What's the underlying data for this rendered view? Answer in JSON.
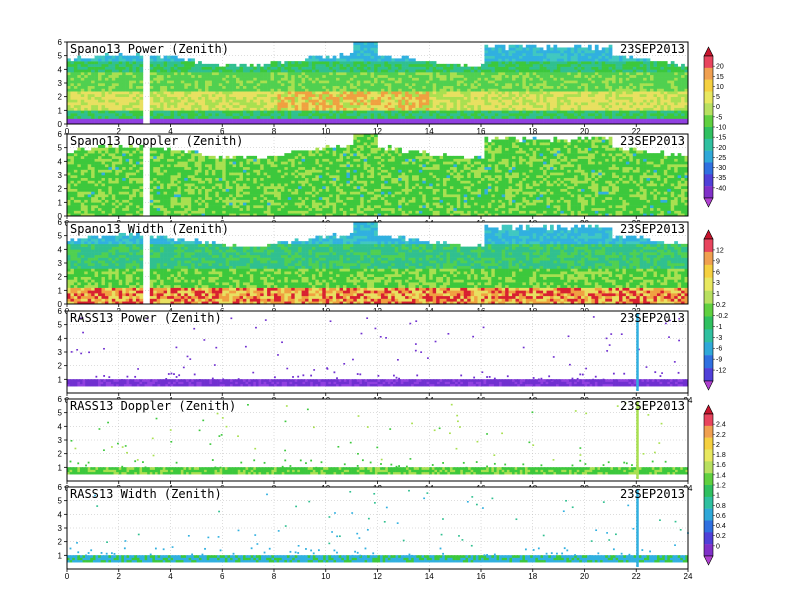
{
  "chart_data": [
    {
      "type": "heatmap",
      "title": "Spano13 Power (Zenith)",
      "date": "23SEP2013",
      "xlim": [
        0,
        24
      ],
      "ylim": [
        0,
        6
      ],
      "x_ticks": [
        "0",
        "2",
        "4",
        "6",
        "8",
        "10",
        "12",
        "14",
        "16",
        "18",
        "20",
        "22"
      ],
      "y_ticks": [
        "0",
        "1",
        "2",
        "3",
        "4",
        "5",
        "6"
      ],
      "grid": true,
      "colorbar": "profiler"
    },
    {
      "type": "heatmap",
      "title": "Spano13 Doppler (Zenith)",
      "date": "23SEP2013",
      "xlim": [
        0,
        24
      ],
      "ylim": [
        0,
        6
      ],
      "x_ticks": [
        "0",
        "2",
        "4",
        "6",
        "8",
        "10",
        "12",
        "14",
        "16",
        "18",
        "20",
        "22"
      ],
      "y_ticks": [
        "0",
        "1",
        "2",
        "3",
        "4",
        "5",
        "6"
      ],
      "grid": true,
      "colorbar": "profiler"
    },
    {
      "type": "heatmap",
      "title": "Spano13 Width (Zenith)",
      "date": "23SEP2013",
      "xlim": [
        0,
        24
      ],
      "ylim": [
        0,
        6
      ],
      "x_ticks": [
        "0",
        "2",
        "4",
        "6",
        "8",
        "10",
        "12",
        "14",
        "16",
        "18",
        "20",
        "22"
      ],
      "y_ticks": [
        "0",
        "1",
        "2",
        "3",
        "4",
        "5",
        "6"
      ],
      "grid": true,
      "colorbar": "width"
    },
    {
      "type": "heatmap",
      "title": "RASS13 Power (Zenith)",
      "date": "23SEP2013",
      "xlim": [
        0,
        24
      ],
      "ylim": [
        0,
        6
      ],
      "x_ticks": [
        "0",
        "2",
        "4",
        "6",
        "8",
        "10",
        "12",
        "14",
        "16",
        "18",
        "20",
        "22",
        "24"
      ],
      "y_ticks": [
        "1",
        "2",
        "3",
        "4",
        "5",
        "6"
      ],
      "grid": true,
      "colorbar": "width"
    },
    {
      "type": "heatmap",
      "title": "RASS13 Doppler (Zenith)",
      "date": "23SEP2013",
      "xlim": [
        0,
        24
      ],
      "ylim": [
        0,
        6
      ],
      "x_ticks": [
        "0",
        "2",
        "4",
        "6",
        "8",
        "10",
        "12",
        "14",
        "16",
        "18",
        "20",
        "22",
        "24"
      ],
      "y_ticks": [
        "1",
        "2",
        "3",
        "4",
        "5",
        "6"
      ],
      "grid": true,
      "colorbar": "rass"
    },
    {
      "type": "heatmap",
      "title": "RASS13 Width (Zenith)",
      "date": "23SEP2013",
      "xlim": [
        0,
        24
      ],
      "ylim": [
        0,
        6
      ],
      "x_ticks": [
        "0",
        "2",
        "4",
        "6",
        "8",
        "10",
        "12",
        "14",
        "16",
        "18",
        "20",
        "22",
        "24"
      ],
      "y_ticks": [
        "1",
        "2",
        "3",
        "4",
        "5",
        "6"
      ],
      "grid": true,
      "colorbar": "rass"
    }
  ],
  "colorbars": {
    "profiler": {
      "labels": [
        "20",
        "15",
        "10",
        "5",
        "0",
        "-5",
        "-10",
        "-15",
        "-20",
        "-25",
        "-30",
        "-35",
        "-40"
      ],
      "colors": [
        "#c8142d",
        "#e8455e",
        "#f0a050",
        "#f5d040",
        "#e8e860",
        "#b8e060",
        "#60d040",
        "#30c060",
        "#30c0a0",
        "#30a8d8",
        "#3070e0",
        "#5040d8",
        "#8030c8",
        "#b040d0"
      ]
    },
    "width": {
      "labels": [
        "12",
        "9",
        "6",
        "3",
        "1",
        "0.2",
        "-0.2",
        "-1",
        "-3",
        "-6",
        "-9",
        "-12"
      ],
      "colors": [
        "#c8142d",
        "#e8455e",
        "#f0a050",
        "#f5d040",
        "#e8e860",
        "#b8e060",
        "#60d040",
        "#30c060",
        "#30c0a0",
        "#30a8d8",
        "#3070e0",
        "#5040d8",
        "#b040d0"
      ]
    },
    "rass": {
      "labels": [
        "2.4",
        "2.2",
        "2",
        "1.8",
        "1.6",
        "1.4",
        "1.2",
        "1",
        "0.8",
        "0.6",
        "0.4",
        "0.2",
        "0"
      ],
      "colors": [
        "#c8142d",
        "#e8455e",
        "#f0a050",
        "#f5d040",
        "#e8e860",
        "#b8e060",
        "#60d040",
        "#30c060",
        "#30c0a0",
        "#30a8d8",
        "#3070e0",
        "#5040d8",
        "#8030c8",
        "#b040d0"
      ]
    }
  }
}
